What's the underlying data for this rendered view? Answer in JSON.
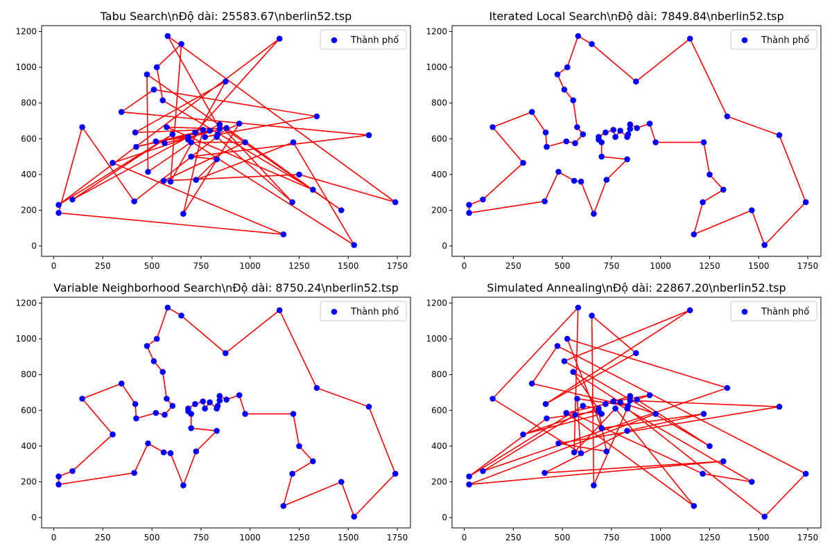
{
  "chart_data": [
    {
      "type": "line",
      "title": "Tabu Search\\nĐộ dài: 25583.67\\nberlin52.tsp",
      "legend": {
        "label": "Thành phố",
        "placement": "top-right"
      },
      "xlim": [
        -62,
        1817
      ],
      "ylim": [
        -58,
        1233
      ],
      "xticks": [
        0,
        250,
        500,
        750,
        1000,
        1250,
        1500,
        1750
      ],
      "yticks": [
        0,
        200,
        400,
        600,
        800,
        1000,
        1200
      ],
      "city_color": "#0000ff",
      "route_color": "#ff0000",
      "route": [
        24,
        33,
        22,
        40,
        12,
        5,
        0,
        21,
        35,
        41,
        48,
        6,
        32,
        38,
        30,
        37,
        20,
        46,
        1,
        16,
        29,
        47,
        25,
        14,
        34,
        13,
        11,
        15,
        45,
        43,
        10,
        2,
        18,
        50,
        36,
        23,
        3,
        28,
        39,
        17,
        42,
        49,
        9,
        7,
        44,
        26,
        31,
        4,
        8,
        51,
        27,
        19,
        24
      ]
    },
    {
      "type": "line",
      "title": "Iterated Local Search\\nĐộ dài: 7849.84\\nberlin52.tsp",
      "legend": {
        "label": "Thành phố",
        "placement": "top-right"
      },
      "xlim": [
        -62,
        1817
      ],
      "ylim": [
        -58,
        1233
      ],
      "xticks": [
        0,
        250,
        500,
        750,
        1000,
        1250,
        1500,
        1750
      ],
      "yticks": [
        0,
        200,
        400,
        600,
        800,
        1000,
        1200
      ],
      "city_color": "#0000ff",
      "route_color": "#ff0000",
      "route": [
        0,
        48,
        31,
        44,
        18,
        40,
        7,
        8,
        9,
        42,
        32,
        50,
        10,
        51,
        13,
        12,
        46,
        25,
        26,
        27,
        11,
        24,
        3,
        5,
        14,
        4,
        23,
        47,
        37,
        36,
        39,
        38,
        35,
        34,
        33,
        43,
        45,
        15,
        28,
        49,
        19,
        22,
        29,
        1,
        6,
        41,
        20,
        16,
        2,
        17,
        30,
        21,
        0
      ]
    },
    {
      "type": "line",
      "title": "Variable Neighborhood Search\\nĐộ dài: 8750.24\\nberlin52.tsp",
      "legend": {
        "label": "Thành phố",
        "placement": "top-right"
      },
      "xlim": [
        -62,
        1817
      ],
      "ylim": [
        -58,
        1233
      ],
      "xticks": [
        0,
        250,
        500,
        750,
        1000,
        1250,
        1500,
        1750
      ],
      "yticks": [
        0,
        200,
        400,
        600,
        800,
        1000,
        1200
      ],
      "city_color": "#0000ff",
      "route_color": "#ff0000",
      "route": [
        0,
        21,
        30,
        17,
        2,
        16,
        20,
        41,
        6,
        1,
        29,
        22,
        19,
        49,
        28,
        15,
        45,
        43,
        33,
        34,
        35,
        38,
        39,
        36,
        37,
        47,
        23,
        4,
        14,
        5,
        3,
        24,
        11,
        27,
        26,
        25,
        46,
        12,
        13,
        51,
        10,
        50,
        32,
        42,
        9,
        8,
        7,
        40,
        18,
        44,
        31,
        48,
        0
      ]
    },
    {
      "type": "line",
      "title": "Simulated Annealing\\nĐộ dài: 22867.20\\nberlin52.tsp",
      "legend": {
        "label": "Thành phố",
        "placement": "top-right"
      },
      "xlim": [
        -62,
        1817
      ],
      "ylim": [
        -58,
        1233
      ],
      "xticks": [
        0,
        250,
        500,
        750,
        1000,
        1250,
        1500,
        1750
      ],
      "yticks": [
        0,
        200,
        400,
        600,
        800,
        1000,
        1200
      ],
      "city_color": "#0000ff",
      "route_color": "#ff0000",
      "route": [
        0,
        25,
        12,
        39,
        3,
        5,
        27,
        18,
        32,
        17,
        42,
        9,
        28,
        47,
        13,
        51,
        40,
        2,
        23,
        31,
        49,
        16,
        8,
        19,
        36,
        46,
        21,
        38,
        14,
        4,
        10,
        22,
        15,
        34,
        30,
        6,
        48,
        35,
        20,
        33,
        44,
        37,
        24,
        1,
        26,
        29,
        45,
        11,
        43,
        7,
        50,
        41,
        0
      ]
    }
  ],
  "cities": [
    [
      565,
      575
    ],
    [
      25,
      185
    ],
    [
      345,
      750
    ],
    [
      945,
      685
    ],
    [
      845,
      655
    ],
    [
      880,
      660
    ],
    [
      25,
      230
    ],
    [
      525,
      1000
    ],
    [
      580,
      1175
    ],
    [
      650,
      1130
    ],
    [
      1605,
      620
    ],
    [
      1220,
      580
    ],
    [
      1465,
      200
    ],
    [
      1530,
      5
    ],
    [
      845,
      680
    ],
    [
      725,
      370
    ],
    [
      145,
      665
    ],
    [
      415,
      635
    ],
    [
      510,
      875
    ],
    [
      560,
      365
    ],
    [
      300,
      465
    ],
    [
      520,
      585
    ],
    [
      480,
      415
    ],
    [
      835,
      625
    ],
    [
      975,
      580
    ],
    [
      1215,
      245
    ],
    [
      1320,
      315
    ],
    [
      1250,
      400
    ],
    [
      660,
      180
    ],
    [
      410,
      250
    ],
    [
      420,
      555
    ],
    [
      575,
      665
    ],
    [
      1150,
      1160
    ],
    [
      700,
      580
    ],
    [
      685,
      595
    ],
    [
      685,
      610
    ],
    [
      770,
      610
    ],
    [
      795,
      645
    ],
    [
      720,
      635
    ],
    [
      760,
      650
    ],
    [
      475,
      960
    ],
    [
      95,
      260
    ],
    [
      875,
      920
    ],
    [
      700,
      500
    ],
    [
      555,
      815
    ],
    [
      830,
      485
    ],
    [
      1170,
      65
    ],
    [
      830,
      610
    ],
    [
      605,
      625
    ],
    [
      595,
      360
    ],
    [
      1340,
      725
    ],
    [
      1740,
      245
    ]
  ]
}
